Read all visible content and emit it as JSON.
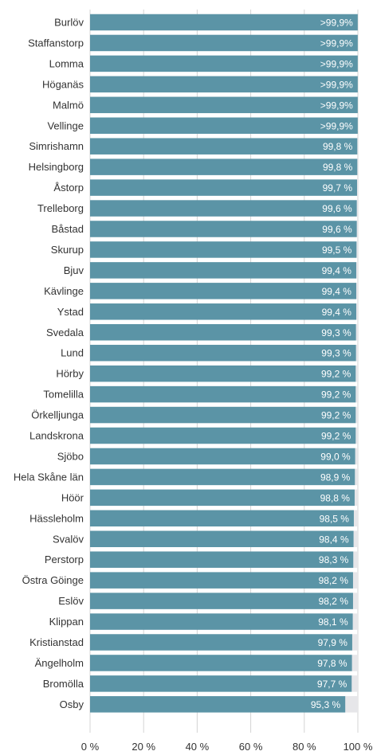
{
  "colors": {
    "bar": "#5b94a6",
    "track": "#e6e6e9",
    "grid": "#d4d4d4",
    "label": "#333333",
    "value_label": "#ffffff"
  },
  "chart_data": {
    "type": "bar",
    "orientation": "horizontal",
    "stacked_remainder": true,
    "title": "",
    "xlabel": "",
    "ylabel": "",
    "xlim": [
      0,
      100
    ],
    "xticks": [
      {
        "value": 0,
        "label": "0 %"
      },
      {
        "value": 20,
        "label": "20 %"
      },
      {
        "value": 40,
        "label": "40 %"
      },
      {
        "value": 60,
        "label": "60 %"
      },
      {
        "value": 80,
        "label": "80 %"
      },
      {
        "value": 100,
        "label": "100 %"
      }
    ],
    "grid": true,
    "categories": [
      "Burlöv",
      "Staffanstorp",
      "Lomma",
      "Höganäs",
      "Malmö",
      "Vellinge",
      "Simrishamn",
      "Helsingborg",
      "Åstorp",
      "Trelleborg",
      "Båstad",
      "Skurup",
      "Bjuv",
      "Kävlinge",
      "Ystad",
      "Svedala",
      "Lund",
      "Hörby",
      "Tomelilla",
      "Örkelljunga",
      "Landskrona",
      "Sjöbo",
      "Hela Skåne län",
      "Höör",
      "Hässleholm",
      "Svalöv",
      "Perstorp",
      "Östra Göinge",
      "Eslöv",
      "Klippan",
      "Kristianstad",
      "Ängelholm",
      "Bromölla",
      "Osby"
    ],
    "values": [
      99.95,
      99.95,
      99.95,
      99.95,
      99.95,
      99.95,
      99.8,
      99.8,
      99.7,
      99.6,
      99.6,
      99.5,
      99.4,
      99.4,
      99.4,
      99.3,
      99.3,
      99.2,
      99.2,
      99.2,
      99.2,
      99.0,
      98.9,
      98.8,
      98.5,
      98.4,
      98.3,
      98.2,
      98.2,
      98.1,
      97.9,
      97.8,
      97.7,
      95.3
    ],
    "value_labels": [
      ">99,9%",
      ">99,9%",
      ">99,9%",
      ">99,9%",
      ">99,9%",
      ">99,9%",
      "99,8 %",
      "99,8 %",
      "99,7 %",
      "99,6 %",
      "99,6 %",
      "99,5 %",
      "99,4 %",
      "99,4 %",
      "99,4 %",
      "99,3 %",
      "99,3 %",
      "99,2 %",
      "99,2 %",
      "99,2 %",
      "99,2 %",
      "99,0 %",
      "98,9 %",
      "98,8 %",
      "98,5 %",
      "98,4 %",
      "98,3 %",
      "98,2 %",
      "98,2 %",
      "98,1 %",
      "97,9 %",
      "97,8 %",
      "97,7 %",
      "95,3 %"
    ]
  }
}
